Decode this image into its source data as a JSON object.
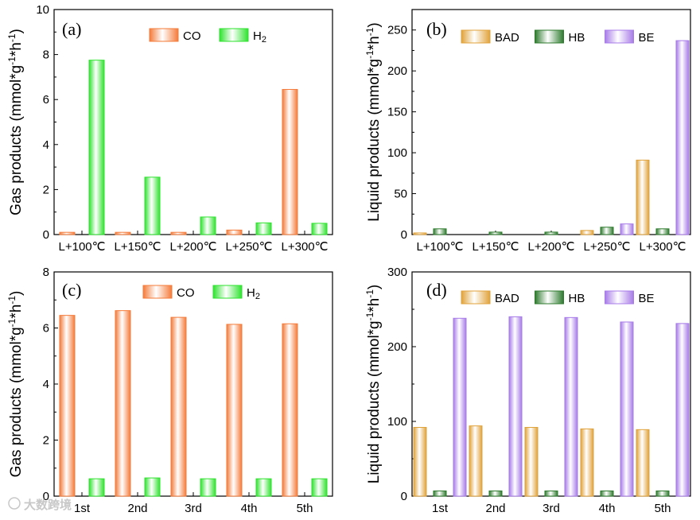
{
  "watermark": "大数跨境",
  "chart_data": [
    {
      "id": "a",
      "panel_label": "(a)",
      "type": "bar",
      "ylabel": "Gas products (mmol*g",
      "ylabel_unit_parts": [
        "-1",
        "*h",
        "-1",
        ")"
      ],
      "ylim": [
        0,
        10
      ],
      "yticks": [
        0,
        2,
        4,
        6,
        8,
        10
      ],
      "categories": [
        "L+100℃",
        "L+150℃",
        "L+200℃",
        "L+250℃",
        "L+300℃"
      ],
      "series": [
        {
          "name": "CO",
          "key": "co",
          "values": [
            0.1,
            0.1,
            0.1,
            0.2,
            6.45
          ]
        },
        {
          "name": "H",
          "subscript": "2",
          "key": "h2",
          "values": [
            7.75,
            2.55,
            0.78,
            0.52,
            0.5
          ]
        }
      ]
    },
    {
      "id": "b",
      "panel_label": "(b)",
      "type": "bar",
      "ylabel": "Liquid products (mmol*g",
      "ylabel_unit_parts": [
        "-1",
        "*h",
        "-1",
        ")"
      ],
      "ylim": [
        0,
        275
      ],
      "yticks": [
        0,
        50,
        100,
        150,
        200,
        250
      ],
      "categories": [
        "L+100℃",
        "L+150℃",
        "L+200℃",
        "L+250℃",
        "L+300℃"
      ],
      "series": [
        {
          "name": "BAD",
          "key": "bad",
          "values": [
            2,
            0,
            0,
            5,
            91
          ]
        },
        {
          "name": "HB",
          "key": "hb",
          "values": [
            7,
            3,
            3,
            9,
            7
          ]
        },
        {
          "name": "BE",
          "key": "be",
          "values": [
            0,
            0,
            0,
            13,
            237
          ]
        }
      ]
    },
    {
      "id": "c",
      "panel_label": "(c)",
      "type": "bar",
      "ylabel": "Gas products (mmol*g",
      "ylabel_unit_parts": [
        "-1",
        "*h",
        "-1",
        ")"
      ],
      "ylim": [
        0,
        8
      ],
      "yticks": [
        0,
        2,
        4,
        6,
        8
      ],
      "categories": [
        "1st",
        "2nd",
        "3rd",
        "4th",
        "5th"
      ],
      "series": [
        {
          "name": "CO",
          "key": "co",
          "values": [
            6.45,
            6.62,
            6.38,
            6.13,
            6.15
          ]
        },
        {
          "name": "H",
          "subscript": "2",
          "key": "h2",
          "values": [
            0.62,
            0.65,
            0.62,
            0.62,
            0.62
          ]
        }
      ]
    },
    {
      "id": "d",
      "panel_label": "(d)",
      "type": "bar",
      "ylabel": "Liquid products (mmol*g",
      "ylabel_unit_parts": [
        "-1",
        "*h",
        "-1",
        ")"
      ],
      "ylim": [
        0,
        300
      ],
      "yticks": [
        0,
        100,
        200,
        300
      ],
      "categories": [
        "1st",
        "2nd",
        "3rd",
        "4th",
        "5th"
      ],
      "series": [
        {
          "name": "BAD",
          "key": "bad",
          "values": [
            92,
            94,
            92,
            90,
            89
          ]
        },
        {
          "name": "HB",
          "key": "hb",
          "values": [
            7,
            7,
            7,
            7,
            7
          ]
        },
        {
          "name": "BE",
          "key": "be",
          "values": [
            238,
            240,
            239,
            233,
            231
          ]
        }
      ]
    }
  ],
  "colors": {
    "co": "#f47b3a",
    "h2": "#2ee32e",
    "bad": "#e0a23a",
    "hb": "#2d7a2d",
    "be": "#a77be8"
  }
}
